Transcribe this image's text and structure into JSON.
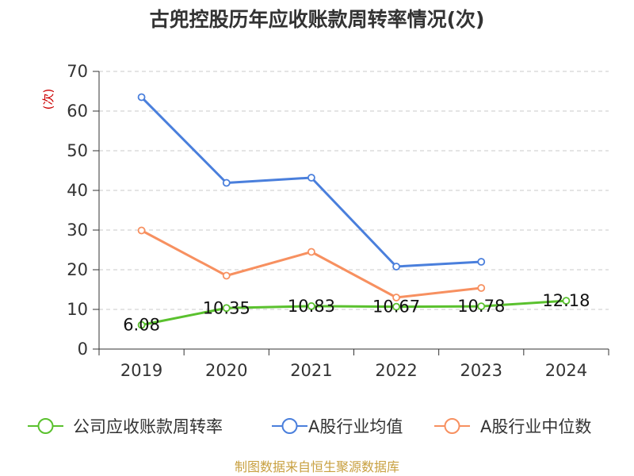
{
  "chart_data": {
    "type": "line",
    "title": "古兜控股历年应收账款周转率情况(次)",
    "ylabel": "(次)",
    "categories": [
      "2019",
      "2020",
      "2021",
      "2022",
      "2023",
      "2024"
    ],
    "ylim": [
      0,
      70
    ],
    "yticks": [
      0,
      10,
      20,
      30,
      40,
      50,
      60,
      70
    ],
    "grid": true,
    "legend_position": "bottom",
    "series": [
      {
        "name": "公司应收账款周转率",
        "color": "#5ac12e",
        "values": [
          6.08,
          10.35,
          10.83,
          10.67,
          10.78,
          12.18
        ],
        "labels": [
          "6.08",
          "10.35",
          "10.83",
          "10.67",
          "10.78",
          "12.18"
        ]
      },
      {
        "name": "A股行业均值",
        "color": "#4a7fdc",
        "values": [
          63.5,
          41.9,
          43.2,
          20.8,
          22.0,
          null
        ]
      },
      {
        "name": "A股行业中位数",
        "color": "#f79060",
        "values": [
          29.9,
          18.5,
          24.5,
          13.0,
          15.4,
          null
        ]
      }
    ]
  },
  "source": "制图数据来自恒生聚源数据库"
}
